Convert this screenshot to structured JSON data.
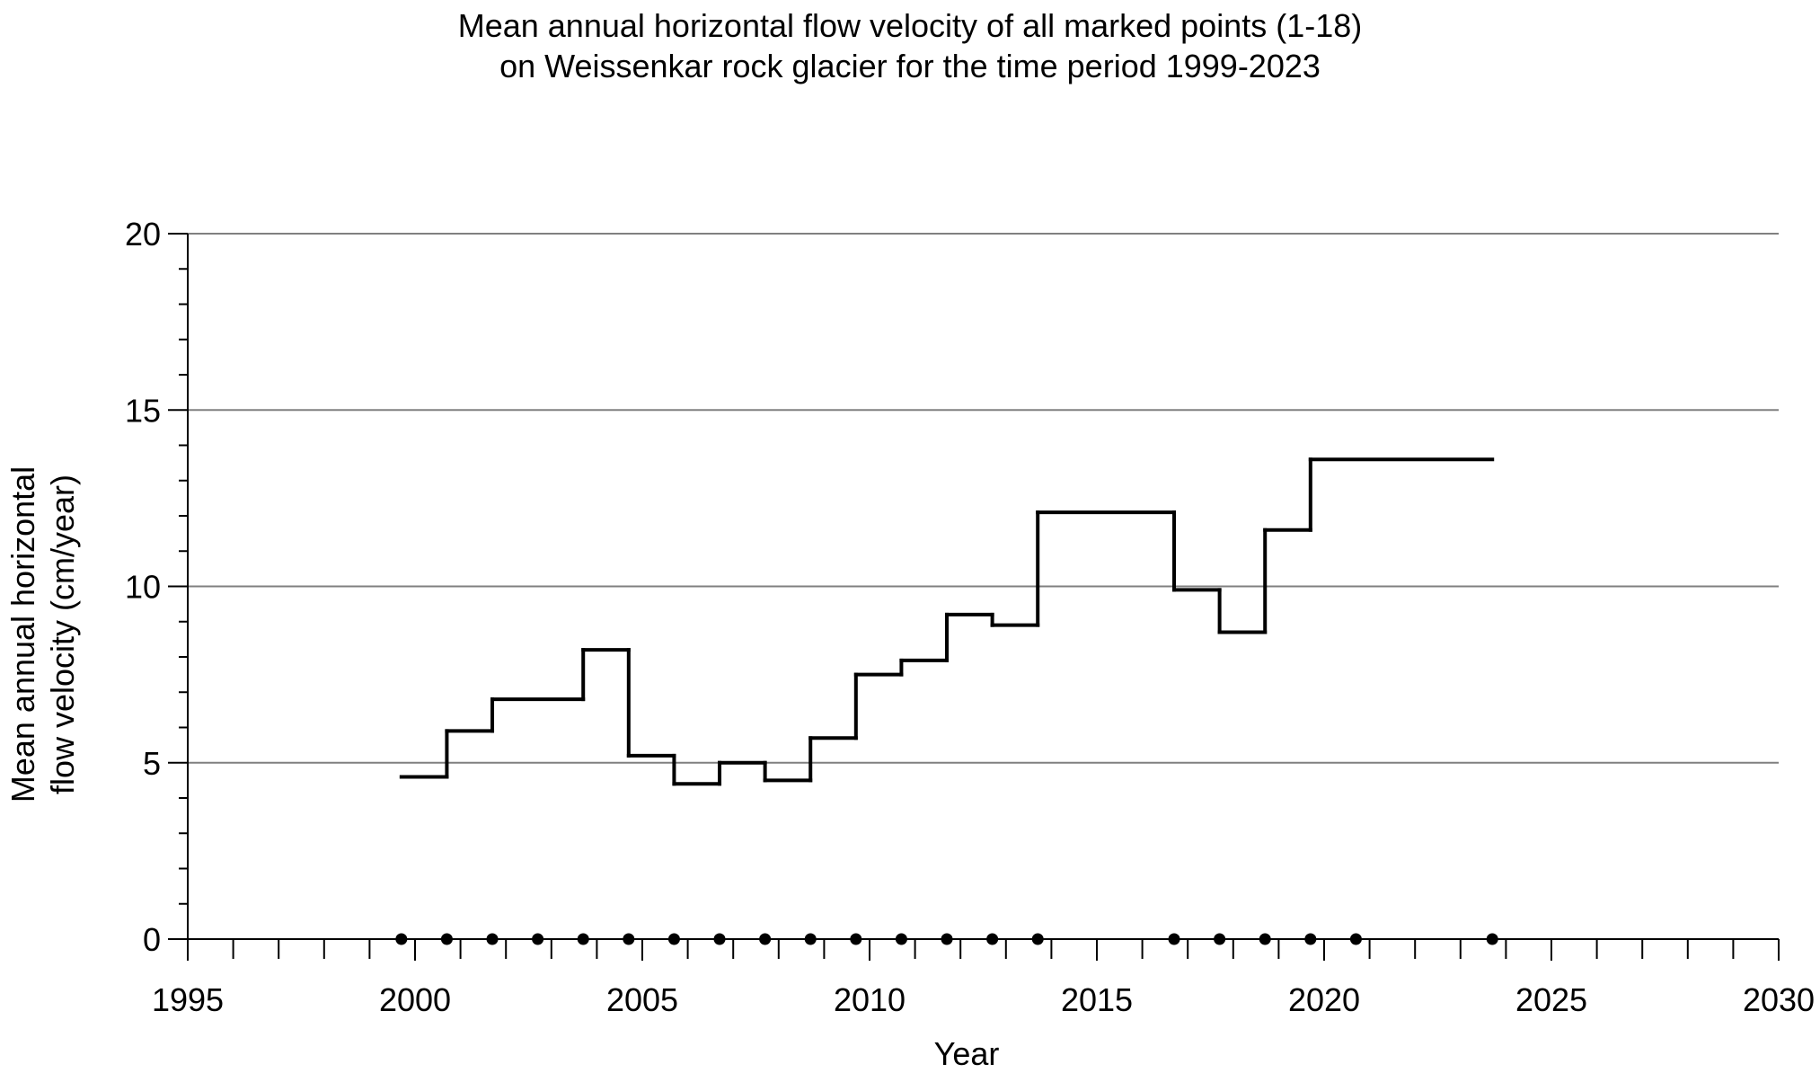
{
  "chart_data": {
    "type": "line",
    "title_lines": [
      "Mean annual horizontal flow velocity of all marked points (1-18)",
      "on Weissenkar rock glacier for the time period 1999-2023"
    ],
    "xlabel": "Year",
    "ylabel_lines": [
      "Mean annual horizontal",
      "flow velocity (cm/year)"
    ],
    "xlim": [
      1995,
      2030
    ],
    "ylim": [
      0,
      20
    ],
    "x_ticks": [
      1995,
      2000,
      2005,
      2010,
      2015,
      2020,
      2025,
      2030
    ],
    "x_tick_labels": [
      "1995",
      "2000",
      "2005",
      "2010",
      "2015",
      "2020",
      "2025",
      "2030"
    ],
    "y_ticks": [
      0,
      5,
      10,
      15,
      20
    ],
    "y_tick_labels": [
      "0",
      "5",
      "10",
      "15",
      "20"
    ],
    "grid": "horizontal",
    "line_color": "#000000",
    "grid_color": "#808080",
    "series": [
      {
        "style": "step",
        "segments": [
          {
            "x0": 1999.7,
            "x1": 2000.7,
            "y": 4.6
          },
          {
            "x0": 2000.7,
            "x1": 2001.7,
            "y": 5.9
          },
          {
            "x0": 2001.7,
            "x1": 2003.7,
            "y": 6.8
          },
          {
            "x0": 2003.7,
            "x1": 2004.7,
            "y": 8.2
          },
          {
            "x0": 2004.7,
            "x1": 2005.7,
            "y": 5.2
          },
          {
            "x0": 2005.7,
            "x1": 2006.7,
            "y": 4.4
          },
          {
            "x0": 2006.7,
            "x1": 2007.7,
            "y": 5.0
          },
          {
            "x0": 2007.7,
            "x1": 2008.7,
            "y": 4.5
          },
          {
            "x0": 2008.7,
            "x1": 2009.7,
            "y": 5.7
          },
          {
            "x0": 2009.7,
            "x1": 2010.7,
            "y": 7.5
          },
          {
            "x0": 2010.7,
            "x1": 2011.7,
            "y": 7.9
          },
          {
            "x0": 2011.7,
            "x1": 2012.7,
            "y": 9.2
          },
          {
            "x0": 2012.7,
            "x1": 2013.7,
            "y": 8.9
          },
          {
            "x0": 2013.7,
            "x1": 2016.7,
            "y": 12.1
          },
          {
            "x0": 2016.7,
            "x1": 2017.7,
            "y": 9.9
          },
          {
            "x0": 2017.7,
            "x1": 2018.7,
            "y": 8.7
          },
          {
            "x0": 2018.7,
            "x1": 2019.7,
            "y": 11.6
          },
          {
            "x0": 2019.7,
            "x1": 2023.7,
            "y": 13.6
          }
        ]
      }
    ],
    "measurement_points": {
      "y": 0,
      "x": [
        1999.7,
        2000.7,
        2001.7,
        2002.7,
        2003.7,
        2004.7,
        2005.7,
        2006.7,
        2007.7,
        2008.7,
        2009.7,
        2010.7,
        2011.7,
        2012.7,
        2013.7,
        2016.7,
        2017.7,
        2018.7,
        2019.7,
        2020.7,
        2023.7
      ]
    }
  }
}
